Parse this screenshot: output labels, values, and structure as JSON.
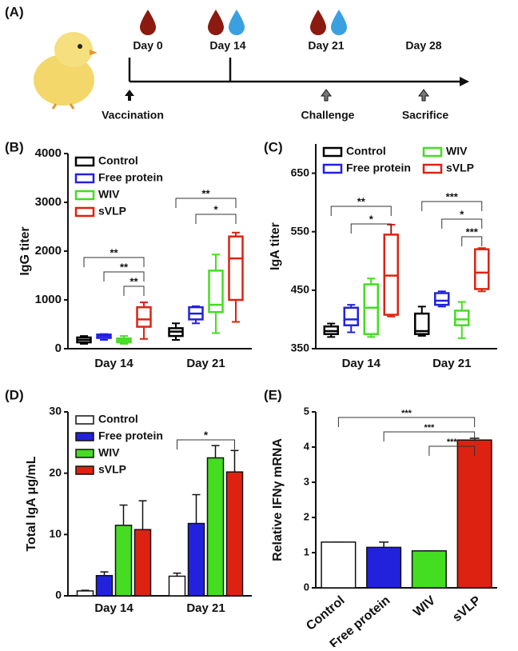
{
  "panel_labels": [
    "(A)",
    "(B)",
    "(C)",
    "(D)",
    "(E)"
  ],
  "timeline": {
    "days": [
      "Day 0",
      "Day 14",
      "Day 21",
      "Day 28"
    ],
    "events": [
      "Vaccination",
      "Challenge",
      "Sacrifice"
    ]
  },
  "chart_data": [
    {
      "type": "box",
      "y_label": "IgG titer",
      "categories": [
        "Day 14",
        "Day 21"
      ],
      "ylim": [
        0,
        4000
      ],
      "yticks": [
        0,
        1000,
        2000,
        3000,
        4000
      ],
      "legend": "upper left",
      "legend_columns": 1,
      "series": [
        {
          "name": "Control",
          "color": "#000000",
          "values": [
            [
              100,
              130,
              180,
              230,
              260
            ],
            [
              180,
              260,
              350,
              420,
              520
            ]
          ]
        },
        {
          "name": "Free protein",
          "color": "#2222dd",
          "values": [
            [
              180,
              220,
              260,
              290,
              300
            ],
            [
              520,
              600,
              720,
              850,
              870
            ]
          ]
        },
        {
          "name": "WIV",
          "color": "#44dd22",
          "values": [
            [
              100,
              130,
              170,
              210,
              260
            ],
            [
              320,
              750,
              900,
              1600,
              1930
            ]
          ]
        },
        {
          "name": "sVLP",
          "color": "#dd2211",
          "values": [
            [
              200,
              450,
              600,
              850,
              950
            ],
            [
              550,
              1000,
              1850,
              2300,
              2380
            ]
          ]
        }
      ],
      "annotations": [
        "**",
        "**",
        "**",
        "**",
        "*"
      ]
    },
    {
      "type": "box",
      "y_label": "IgA titer",
      "categories": [
        "Day 14",
        "Day 21"
      ],
      "ylim": [
        350,
        700
      ],
      "yticks": [
        350,
        450,
        550,
        650
      ],
      "legend": "upper left",
      "legend_columns": 2,
      "series": [
        {
          "name": "Control",
          "color": "#000000",
          "values": [
            [
              370,
              375,
              380,
              388,
              393
            ],
            [
              372,
              375,
              380,
              410,
              422
            ]
          ]
        },
        {
          "name": "Free protein",
          "color": "#2222dd",
          "values": [
            [
              378,
              390,
              400,
              420,
              425
            ],
            [
              422,
              425,
              432,
              445,
              448
            ]
          ]
        },
        {
          "name": "WIV",
          "color": "#44dd22",
          "values": [
            [
              370,
              375,
              420,
              460,
              470
            ],
            [
              368,
              390,
              400,
              415,
              430
            ]
          ]
        },
        {
          "name": "sVLP",
          "color": "#dd2211",
          "values": [
            [
              405,
              408,
              475,
              545,
              562
            ],
            [
              448,
              452,
              480,
              520,
              522
            ]
          ]
        }
      ],
      "annotations": [
        "**",
        "*",
        "***",
        "*",
        "***"
      ]
    },
    {
      "type": "groupbar",
      "y_label": "Total IgA μg/mL",
      "categories": [
        "Day 14",
        "Day 21"
      ],
      "ylim": [
        0,
        30
      ],
      "yticks": [
        0,
        10,
        20,
        30
      ],
      "legend": "upper left",
      "legend_columns": 1,
      "series": [
        {
          "name": "Control",
          "color": "#ffffff",
          "values": [
            0.8,
            3.2
          ],
          "errors": [
            0.1,
            0.5
          ]
        },
        {
          "name": "Free protein",
          "color": "#2222dd",
          "values": [
            3.3,
            11.8
          ],
          "errors": [
            0.6,
            4.7
          ]
        },
        {
          "name": "WIV",
          "color": "#44dd22",
          "values": [
            11.5,
            22.5
          ],
          "errors": [
            3.3,
            2
          ]
        },
        {
          "name": "sVLP",
          "color": "#dd2211",
          "values": [
            10.8,
            20.2
          ],
          "errors": [
            4.7,
            3.5
          ]
        }
      ],
      "annotations": [
        "*"
      ]
    },
    {
      "type": "bar",
      "y_label": "Relative IFNγ mRNA",
      "categories": [
        "Control",
        "Free protein",
        "WIV",
        "sVLP"
      ],
      "values": [
        1.3,
        1.15,
        1.05,
        4.2
      ],
      "errors": [
        0,
        0.15,
        0,
        0.05
      ],
      "colors": [
        "#ffffff",
        "#2222dd",
        "#44dd22",
        "#dd2211"
      ],
      "ylim": [
        0,
        5
      ],
      "yticks": [
        0,
        1,
        2,
        3,
        4,
        5
      ],
      "annotations": [
        "***",
        "***",
        "***"
      ]
    }
  ]
}
